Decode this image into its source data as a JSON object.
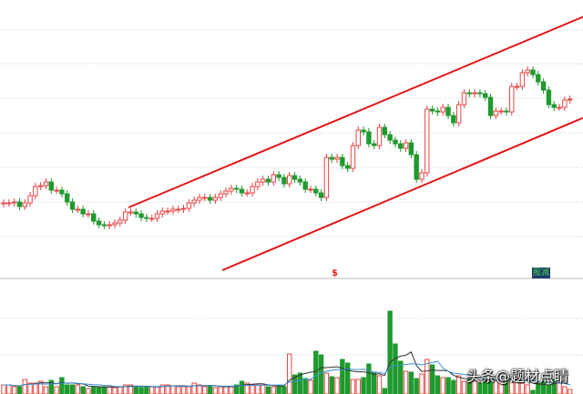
{
  "chart_data": {
    "type": "candlestick",
    "title": "",
    "grid": true,
    "colors": {
      "up": "#e84545",
      "down": "#1f9a2e",
      "channel": "#e01818",
      "ma_short": "#333333",
      "ma_long": "#3a8fd8",
      "grid": "#d0d0d0"
    },
    "first_open": 7.6,
    "closes": [
      7.7,
      7.7,
      7.8,
      7.3,
      7.7,
      8.5,
      9.5,
      9.6,
      10.0,
      9.1,
      9.1,
      8.7,
      7.8,
      7.0,
      7.0,
      6.5,
      6.5,
      5.7,
      5.3,
      5.2,
      5.3,
      5.5,
      5.8,
      6.7,
      6.7,
      6.5,
      6.1,
      6.0,
      6.0,
      6.5,
      6.8,
      6.8,
      7.0,
      7.0,
      7.1,
      7.7,
      8.0,
      8.3,
      8.3,
      8.0,
      8.3,
      8.7,
      9.0,
      9.3,
      9.2,
      8.8,
      8.8,
      9.5,
      10.0,
      10.3,
      10.0,
      10.8,
      10.5,
      9.8,
      10.7,
      10.3,
      10.0,
      9.2,
      9.2,
      8.8,
      8.3,
      12.7,
      12.5,
      12.7,
      11.8,
      11.5,
      14.0,
      15.7,
      15.5,
      14.2,
      14.0,
      16.0,
      15.2,
      14.6,
      14.2,
      13.7,
      14.3,
      13.0,
      10.3,
      11.0,
      18.0,
      17.8,
      17.7,
      18.2,
      17.3,
      16.5,
      18.5,
      19.8,
      19.7,
      19.8,
      19.7,
      19.3,
      17.3,
      17.8,
      17.8,
      17.7,
      20.5,
      20.5,
      22.0,
      22.3,
      21.8,
      21.0,
      20.1,
      18.5,
      18.2,
      18.2,
      19.0,
      19.1
    ],
    "volumes": [
      10,
      10,
      8,
      8,
      16,
      12,
      12,
      14,
      8,
      15,
      8,
      18,
      10,
      10,
      10,
      8,
      6,
      8,
      8,
      8,
      8,
      7,
      8,
      10,
      10,
      8,
      7,
      8,
      8,
      8,
      10,
      10,
      9,
      8,
      8,
      8,
      12,
      10,
      8,
      9,
      7,
      8,
      8,
      8,
      10,
      14,
      12,
      10,
      10,
      10,
      8,
      8,
      9,
      8,
      44,
      21,
      23,
      17,
      15,
      47,
      43,
      23,
      19,
      18,
      38,
      34,
      16,
      16,
      18,
      33,
      24,
      20,
      6,
      91,
      55,
      36,
      25,
      24,
      17,
      22,
      38,
      32,
      20,
      18,
      18,
      15,
      20,
      14,
      16,
      14,
      12,
      18,
      18,
      14,
      15,
      18,
      16,
      17,
      12,
      10,
      4,
      12,
      14,
      10,
      16,
      12,
      8,
      5
    ],
    "channel": {
      "upper": [
        [
          23.6,
          7.2
        ],
        [
          110.1,
          28.3
        ]
      ],
      "lower": [
        [
          41.3,
          0.3
        ],
        [
          110.1,
          17.2
        ]
      ]
    },
    "moving_averages": [
      5,
      10
    ]
  },
  "annotations": {
    "marker_s": "$",
    "marker_badge": "股减"
  },
  "watermark": "头条@题材点睛"
}
